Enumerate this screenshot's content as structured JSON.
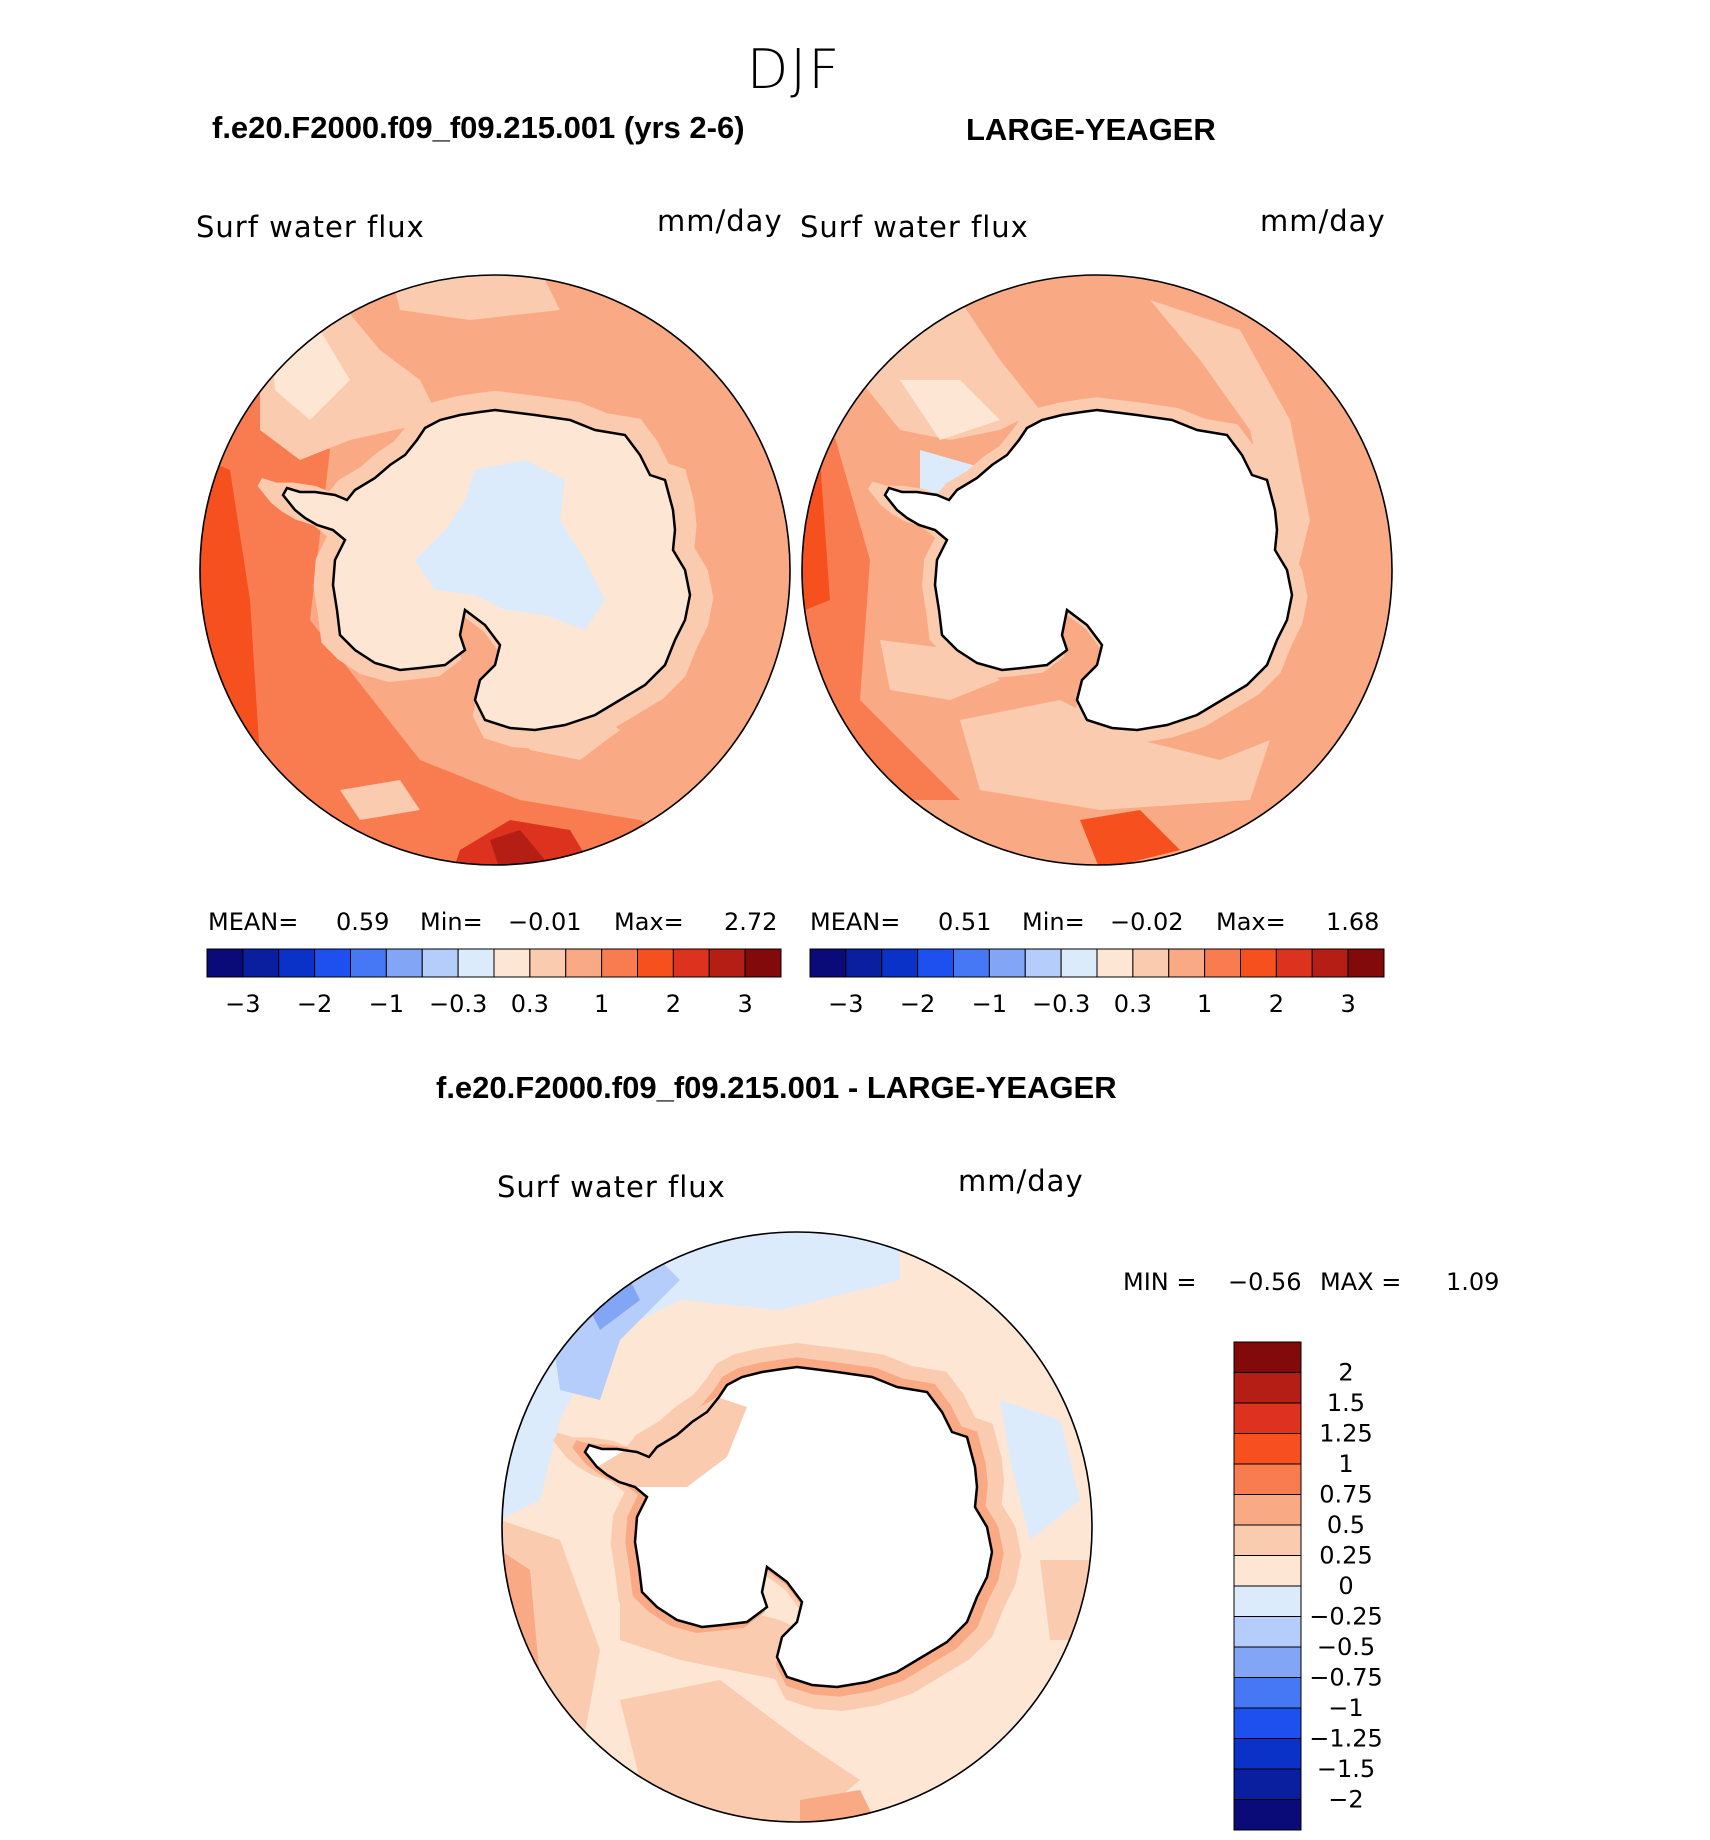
{
  "season": "DJF",
  "panels": [
    {
      "title": "f.e20.F2000.f09_f09.215.001 (yrs 2-6)",
      "variable": "Surf water flux",
      "units": "mm/day",
      "stats": {
        "mean_label": "MEAN=",
        "mean": "0.59",
        "min_label": "Min=",
        "min": "−0.01",
        "max_label": "Max=",
        "max": "2.72"
      }
    },
    {
      "title": "LARGE-YEAGER",
      "variable": "Surf water flux",
      "units": "mm/day",
      "stats": {
        "mean_label": "MEAN=",
        "mean": "0.51",
        "min_label": "Min=",
        "min": "−0.02",
        "max_label": "Max=",
        "max": "1.68"
      }
    }
  ],
  "top_colorbar": {
    "colors": [
      "#0a0a78",
      "#0a1ea0",
      "#0a32c8",
      "#1e50f0",
      "#4678f5",
      "#82a5f5",
      "#b4cdfa",
      "#dcebfc",
      "#fde6d4",
      "#fbcbb0",
      "#f9a983",
      "#f87c50",
      "#f5501e",
      "#dc321e",
      "#b41e14",
      "#820a0a"
    ],
    "ticks": [
      "−3",
      "−2",
      "−1",
      "−0.3",
      "0.3",
      "1",
      "2",
      "3"
    ]
  },
  "diff": {
    "title": "f.e20.F2000.f09_f09.215.001 - LARGE-YEAGER",
    "variable": "Surf water flux",
    "units": "mm/day",
    "stats": {
      "min_label": "MIN =",
      "min": "−0.56",
      "max_label": "MAX =",
      "max": "1.09"
    }
  },
  "diff_colorbar": {
    "colors": [
      "#820a0a",
      "#b41e14",
      "#dc321e",
      "#f5501e",
      "#f87c50",
      "#f9a983",
      "#fbcbb0",
      "#fde6d4",
      "#dcebfc",
      "#b4cdfa",
      "#82a5f5",
      "#4678f5",
      "#1e50f0",
      "#0a32c8",
      "#0a1ea0",
      "#0a0a78"
    ],
    "ticks": [
      "2",
      "1.5",
      "1.25",
      "1",
      "0.75",
      "0.5",
      "0.25",
      "0",
      "−0.25",
      "−0.5",
      "−0.75",
      "−1",
      "−1.25",
      "−1.5",
      "−2"
    ]
  }
}
